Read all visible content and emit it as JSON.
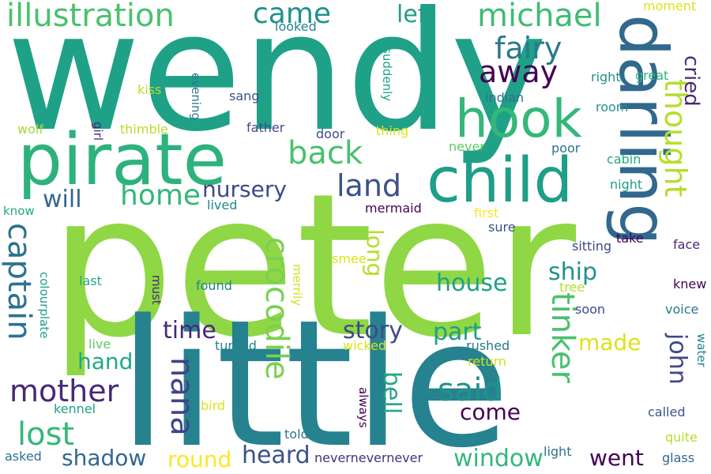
{
  "words": [
    {
      "text": "peter",
      "color": "#8fd744",
      "vertical": false
    },
    {
      "text": "wendy",
      "color": "#1fa187",
      "vertical": false
    },
    {
      "text": "little",
      "color": "#26828e",
      "vertical": false
    },
    {
      "text": "pirate",
      "color": "#2db27d",
      "vertical": false
    },
    {
      "text": "darling",
      "color": "#31688e",
      "vertical": true
    },
    {
      "text": "child",
      "color": "#1f9e89",
      "vertical": false
    },
    {
      "text": "hook",
      "color": "#35b779",
      "vertical": false
    },
    {
      "text": "crocodile",
      "color": "#7ad151",
      "vertical": true
    },
    {
      "text": "captain",
      "color": "#2c728e",
      "vertical": true
    },
    {
      "text": "illustration",
      "color": "#4ac16d",
      "vertical": false
    },
    {
      "text": "michael",
      "color": "#3fbc73",
      "vertical": false
    },
    {
      "text": "came",
      "color": "#21918c",
      "vertical": false
    },
    {
      "text": "fairy",
      "color": "#2a788e",
      "vertical": false
    },
    {
      "text": "away",
      "color": "#440154",
      "vertical": false
    },
    {
      "text": "back",
      "color": "#4ac16d",
      "vertical": false
    },
    {
      "text": "home",
      "color": "#35b779",
      "vertical": false
    },
    {
      "text": "land",
      "color": "#3b528b",
      "vertical": false
    },
    {
      "text": "thought",
      "color": "#b5de2b",
      "vertical": true
    },
    {
      "text": "cried",
      "color": "#482878",
      "vertical": true
    },
    {
      "text": "left",
      "color": "#1f9e89",
      "vertical": false
    },
    {
      "text": "nursery",
      "color": "#3e4989",
      "vertical": false
    },
    {
      "text": "will",
      "color": "#31688e",
      "vertical": false
    },
    {
      "text": "mother",
      "color": "#482878",
      "vertical": false
    },
    {
      "text": "lost",
      "color": "#35b779",
      "vertical": false
    },
    {
      "text": "nana",
      "color": "#414487",
      "vertical": true
    },
    {
      "text": "hand",
      "color": "#22a884",
      "vertical": false
    },
    {
      "text": "time",
      "color": "#482878",
      "vertical": false
    },
    {
      "text": "story",
      "color": "#3e4989",
      "vertical": false
    },
    {
      "text": "part",
      "color": "#1f9e89",
      "vertical": false
    },
    {
      "text": "said",
      "color": "#21918c",
      "vertical": false
    },
    {
      "text": "come",
      "color": "#440154",
      "vertical": false
    },
    {
      "text": "house",
      "color": "#1fa187",
      "vertical": false
    },
    {
      "text": "ship",
      "color": "#21918c",
      "vertical": false
    },
    {
      "text": "tinker",
      "color": "#4ac16d",
      "vertical": true
    },
    {
      "text": "john",
      "color": "#3e4989",
      "vertical": true
    },
    {
      "text": "bell",
      "color": "#22a884",
      "vertical": true
    },
    {
      "text": "long",
      "color": "#b5de2b",
      "vertical": true
    },
    {
      "text": "made",
      "color": "#dde318",
      "vertical": false
    },
    {
      "text": "window",
      "color": "#35b779",
      "vertical": false
    },
    {
      "text": "shadow",
      "color": "#31688e",
      "vertical": false
    },
    {
      "text": "round",
      "color": "#fde725",
      "vertical": false
    },
    {
      "text": "heard",
      "color": "#3b528b",
      "vertical": false
    },
    {
      "text": "went",
      "color": "#440154",
      "vertical": false
    },
    {
      "text": "nevernevernever",
      "color": "#46327e",
      "vertical": false
    },
    {
      "text": "told",
      "color": "#2a788e",
      "vertical": false
    },
    {
      "text": "asked",
      "color": "#2c728e",
      "vertical": false
    },
    {
      "text": "light",
      "color": "#2c728e",
      "vertical": false
    },
    {
      "text": "glass",
      "color": "#31688e",
      "vertical": false
    },
    {
      "text": "quite",
      "color": "#b5de2b",
      "vertical": false
    },
    {
      "text": "called",
      "color": "#3b528b",
      "vertical": false
    },
    {
      "text": "water",
      "color": "#26828e",
      "vertical": true
    },
    {
      "text": "voice",
      "color": "#2a788e",
      "vertical": false
    },
    {
      "text": "knew",
      "color": "#440154",
      "vertical": false
    },
    {
      "text": "face",
      "color": "#482878",
      "vertical": false
    },
    {
      "text": "take",
      "color": "#440154",
      "vertical": false
    },
    {
      "text": "sitting",
      "color": "#3e4989",
      "vertical": false
    },
    {
      "text": "tree",
      "color": "#b5de2b",
      "vertical": false
    },
    {
      "text": "soon",
      "color": "#3e4989",
      "vertical": false
    },
    {
      "text": "night",
      "color": "#1f9e89",
      "vertical": false
    },
    {
      "text": "cabin",
      "color": "#22a884",
      "vertical": false
    },
    {
      "text": "room",
      "color": "#21918c",
      "vertical": false
    },
    {
      "text": "great",
      "color": "#2db27d",
      "vertical": false
    },
    {
      "text": "right",
      "color": "#21918c",
      "vertical": false
    },
    {
      "text": "moment",
      "color": "#dde318",
      "vertical": false
    },
    {
      "text": "poor",
      "color": "#2c728e",
      "vertical": false
    },
    {
      "text": "never",
      "color": "#5ec962",
      "vertical": false
    },
    {
      "text": "indian",
      "color": "#2c728e",
      "vertical": false
    },
    {
      "text": "thing",
      "color": "#dde318",
      "vertical": false
    },
    {
      "text": "door",
      "color": "#3e4989",
      "vertical": false
    },
    {
      "text": "suddenly",
      "color": "#1f9e89",
      "vertical": true
    },
    {
      "text": "looked",
      "color": "#26828e",
      "vertical": false
    },
    {
      "text": "sang",
      "color": "#3b528b",
      "vertical": false
    },
    {
      "text": "father",
      "color": "#3e4989",
      "vertical": false
    },
    {
      "text": "evening",
      "color": "#2a788e",
      "vertical": true
    },
    {
      "text": "kiss",
      "color": "#b5de2b",
      "vertical": false
    },
    {
      "text": "thimble",
      "color": "#b5de2b",
      "vertical": false
    },
    {
      "text": "wolf",
      "color": "#a0da39",
      "vertical": false
    },
    {
      "text": "girl",
      "color": "#482878",
      "vertical": true
    },
    {
      "text": "know",
      "color": "#22a884",
      "vertical": false
    },
    {
      "text": "lived",
      "color": "#26828e",
      "vertical": false
    },
    {
      "text": "mermaid",
      "color": "#440154",
      "vertical": false
    },
    {
      "text": "first",
      "color": "#fde725",
      "vertical": false
    },
    {
      "text": "sure",
      "color": "#3b528b",
      "vertical": false
    },
    {
      "text": "smee",
      "color": "#dde318",
      "vertical": false
    },
    {
      "text": "merrily",
      "color": "#d2e21b",
      "vertical": true
    },
    {
      "text": "found",
      "color": "#26828e",
      "vertical": false
    },
    {
      "text": "must",
      "color": "#482878",
      "vertical": true
    },
    {
      "text": "last",
      "color": "#22a884",
      "vertical": false
    },
    {
      "text": "colourplate",
      "color": "#1f9e89",
      "vertical": true
    },
    {
      "text": "live",
      "color": "#5ec962",
      "vertical": false
    },
    {
      "text": "turned",
      "color": "#26828e",
      "vertical": false
    },
    {
      "text": "wicked",
      "color": "#dde318",
      "vertical": false
    },
    {
      "text": "rushed",
      "color": "#2a788e",
      "vertical": false
    },
    {
      "text": "return",
      "color": "#d2e21b",
      "vertical": false
    },
    {
      "text": "always",
      "color": "#440154",
      "vertical": true
    },
    {
      "text": "kennel",
      "color": "#1fa187",
      "vertical": false
    },
    {
      "text": "bird",
      "color": "#dde318",
      "vertical": false
    }
  ]
}
